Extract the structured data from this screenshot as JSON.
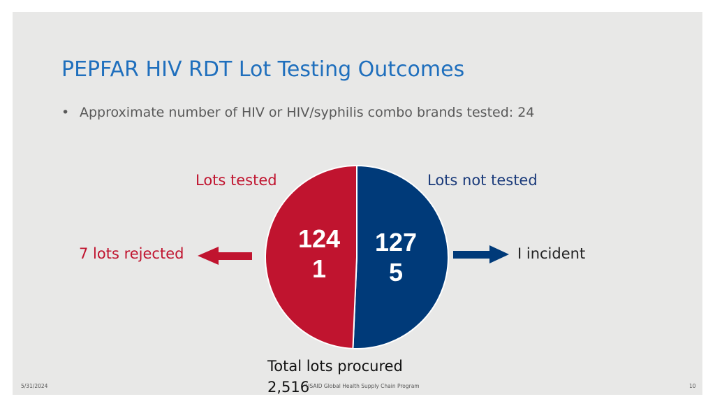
{
  "slide": {
    "title": "PEPFAR HIV RDT Lot Testing Outcomes",
    "bullet": "Approximate number of HIV or HIV/syphilis combo brands tested: 24",
    "bullet_symbol": "•"
  },
  "chart_data": {
    "type": "pie",
    "title": "",
    "slices": [
      {
        "name": "Lots tested",
        "value": 1241,
        "display": [
          "124",
          "1"
        ],
        "color": "#c0142f"
      },
      {
        "name": "Lots not tested",
        "value": 1275,
        "display": [
          "127",
          "5"
        ],
        "color": "#003a79"
      }
    ],
    "total_label": "Total lots procured",
    "total": "2,516"
  },
  "callouts": {
    "left": {
      "text": "7 lots rejected",
      "color": "#c0142f"
    },
    "right": {
      "text": "I incident",
      "color": "#1a3a7a"
    }
  },
  "footer": {
    "date": "5/31/2024",
    "program": "USAID Global Health Supply Chain Program",
    "page": "10"
  }
}
